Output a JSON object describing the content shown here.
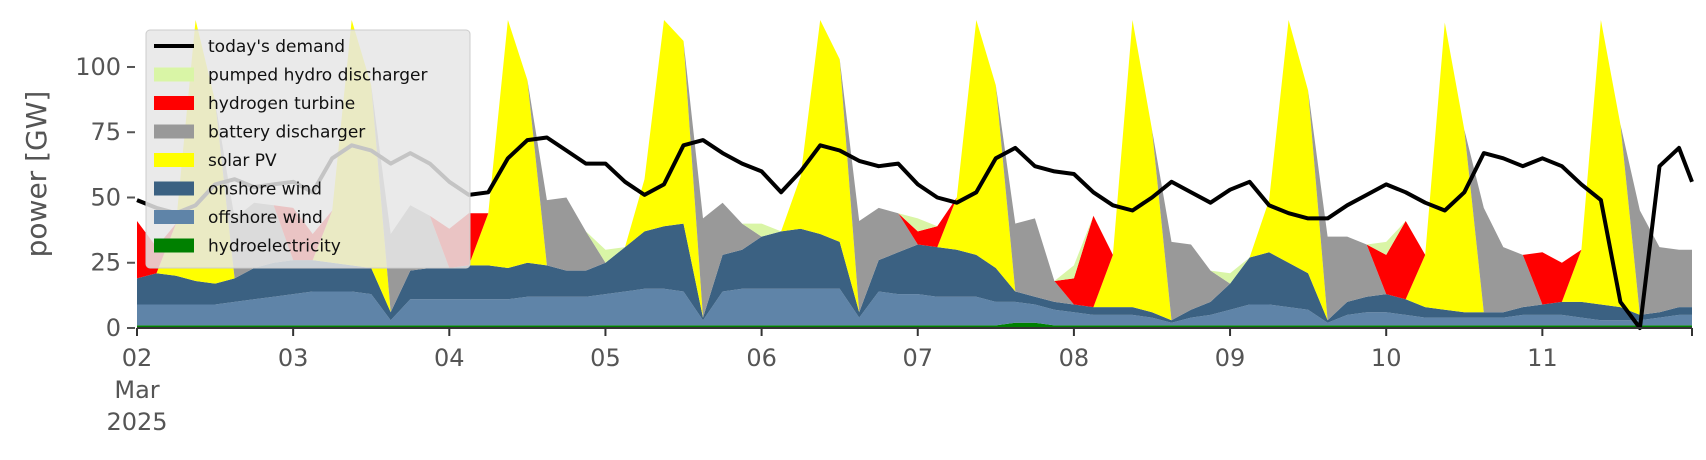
{
  "chart_data": {
    "type": "area",
    "xlabel": "",
    "ylabel": "power [GW]",
    "ylim": [
      0,
      118
    ],
    "xlim": [
      "2025-03-02 00:00",
      "2025-03-11 23:00"
    ],
    "x_ticks": [
      "02",
      "03",
      "04",
      "05",
      "06",
      "07",
      "08",
      "09",
      "10",
      "11"
    ],
    "x_tick_sub": [
      "Mar",
      "2025"
    ],
    "y_ticks": [
      0,
      25,
      50,
      75,
      100
    ],
    "grid": false,
    "legend_position": "top-left",
    "resolution": "3-hourly (times 00,03,...,21)",
    "days": [
      "2025-03-02",
      "2025-03-03",
      "2025-03-04",
      "2025-03-05",
      "2025-03-06",
      "2025-03-07",
      "2025-03-08",
      "2025-03-09",
      "2025-03-10",
      "2025-03-11"
    ],
    "series": [
      {
        "name": "hydroelectricity",
        "color": "#008000",
        "by_day": [
          [
            1,
            1,
            1,
            1,
            1,
            1,
            1,
            1
          ],
          [
            1,
            1,
            1,
            1,
            1,
            1,
            1,
            1
          ],
          [
            1,
            1,
            1,
            1,
            1,
            1,
            1,
            1
          ],
          [
            1,
            1,
            1,
            1,
            1,
            1,
            1,
            1
          ],
          [
            1,
            1,
            1,
            1,
            1,
            1,
            1,
            1
          ],
          [
            1,
            1,
            1,
            1,
            1,
            2,
            2,
            1
          ],
          [
            1,
            1,
            1,
            1,
            1,
            1,
            1,
            1
          ],
          [
            1,
            1,
            1,
            1,
            1,
            1,
            1,
            1
          ],
          [
            1,
            1,
            1,
            1,
            1,
            1,
            1,
            1
          ],
          [
            1,
            1,
            1,
            1,
            1,
            1,
            1,
            1
          ]
        ]
      },
      {
        "name": "offshore wind",
        "color": "#5f84a8",
        "by_day": [
          [
            8,
            8,
            8,
            8,
            8,
            9,
            10,
            11
          ],
          [
            12,
            13,
            13,
            13,
            12,
            2,
            10,
            10
          ],
          [
            10,
            10,
            10,
            10,
            11,
            11,
            11,
            11
          ],
          [
            12,
            13,
            14,
            14,
            13,
            2,
            13,
            14
          ],
          [
            14,
            14,
            14,
            14,
            14,
            3,
            13,
            12
          ],
          [
            12,
            11,
            11,
            11,
            9,
            8,
            7,
            6
          ],
          [
            5,
            4,
            4,
            4,
            3,
            1,
            3,
            4
          ],
          [
            6,
            8,
            8,
            7,
            6,
            1,
            4,
            5
          ],
          [
            5,
            4,
            3,
            3,
            3,
            3,
            3,
            4
          ],
          [
            4,
            4,
            3,
            2,
            2,
            2,
            3,
            4
          ]
        ]
      },
      {
        "name": "onshore wind",
        "color": "#3b6182",
        "by_day": [
          [
            10,
            12,
            11,
            9,
            8,
            9,
            12,
            13
          ],
          [
            13,
            12,
            11,
            10,
            10,
            3,
            11,
            12
          ],
          [
            12,
            13,
            13,
            12,
            13,
            12,
            10,
            10
          ],
          [
            12,
            17,
            22,
            24,
            26,
            1,
            14,
            15
          ],
          [
            20,
            22,
            23,
            21,
            18,
            2,
            12,
            16
          ],
          [
            19,
            19,
            18,
            16,
            13,
            4,
            3,
            3
          ],
          [
            3,
            3,
            3,
            3,
            2,
            1,
            3,
            5
          ],
          [
            10,
            18,
            20,
            17,
            14,
            1,
            5,
            6
          ],
          [
            7,
            6,
            4,
            3,
            2,
            2,
            2,
            3
          ],
          [
            4,
            5,
            6,
            6,
            5,
            2,
            2,
            3
          ]
        ]
      },
      {
        "name": "solar PV",
        "color": "#ffff00",
        "by_day": [
          [
            0,
            0,
            20,
            110,
            70,
            0,
            0,
            0
          ],
          [
            0,
            0,
            20,
            110,
            70,
            0,
            0,
            0
          ],
          [
            0,
            0,
            20,
            110,
            70,
            0,
            0,
            0
          ],
          [
            0,
            0,
            20,
            110,
            70,
            0,
            0,
            0
          ],
          [
            0,
            0,
            20,
            110,
            70,
            0,
            0,
            0
          ],
          [
            0,
            0,
            20,
            110,
            70,
            0,
            0,
            0
          ],
          [
            0,
            0,
            20,
            110,
            70,
            0,
            0,
            0
          ],
          [
            0,
            0,
            20,
            110,
            70,
            0,
            0,
            0
          ],
          [
            0,
            0,
            20,
            110,
            70,
            0,
            0,
            0
          ],
          [
            0,
            0,
            20,
            110,
            70,
            0,
            0,
            0
          ]
        ]
      },
      {
        "name": "battery discharger",
        "color": "#999999",
        "by_day": [
          [
            0,
            0,
            0,
            0,
            0,
            23,
            25,
            22
          ],
          [
            0,
            0,
            0,
            0,
            0,
            30,
            25,
            20
          ],
          [
            0,
            0,
            0,
            0,
            0,
            25,
            28,
            15
          ],
          [
            0,
            0,
            0,
            0,
            0,
            38,
            20,
            10
          ],
          [
            0,
            0,
            0,
            0,
            0,
            35,
            20,
            15
          ],
          [
            0,
            0,
            0,
            0,
            0,
            26,
            30,
            8
          ],
          [
            0,
            0,
            0,
            0,
            0,
            30,
            25,
            12
          ],
          [
            0,
            0,
            0,
            0,
            0,
            32,
            25,
            20
          ],
          [
            0,
            0,
            0,
            0,
            0,
            40,
            25,
            20
          ],
          [
            0,
            0,
            0,
            0,
            0,
            40,
            25,
            22
          ]
        ]
      },
      {
        "name": "hydrogen turbine",
        "color": "#ff0000",
        "by_day": [
          [
            22,
            10,
            0,
            0,
            0,
            0,
            0,
            0
          ],
          [
            20,
            10,
            0,
            0,
            0,
            0,
            0,
            0
          ],
          [
            15,
            20,
            0,
            0,
            0,
            0,
            0,
            0
          ],
          [
            0,
            0,
            0,
            0,
            0,
            0,
            0,
            0
          ],
          [
            0,
            0,
            0,
            0,
            0,
            0,
            0,
            0
          ],
          [
            5,
            8,
            0,
            0,
            0,
            0,
            0,
            0
          ],
          [
            10,
            35,
            0,
            0,
            0,
            0,
            0,
            0
          ],
          [
            0,
            0,
            0,
            0,
            0,
            0,
            0,
            0
          ],
          [
            15,
            30,
            0,
            0,
            0,
            0,
            0,
            0
          ],
          [
            20,
            15,
            0,
            0,
            0,
            0,
            0,
            0
          ]
        ]
      },
      {
        "name": "pumped hydro discharger",
        "color": "#d9f5a6",
        "by_day": [
          [
            0,
            0,
            0,
            0,
            0,
            0,
            0,
            0
          ],
          [
            0,
            0,
            0,
            0,
            0,
            0,
            0,
            0
          ],
          [
            0,
            0,
            0,
            0,
            0,
            0,
            0,
            0
          ],
          [
            5,
            0,
            0,
            0,
            0,
            0,
            0,
            0
          ],
          [
            5,
            0,
            0,
            0,
            0,
            0,
            0,
            0
          ],
          [
            5,
            0,
            0,
            0,
            0,
            0,
            0,
            0
          ],
          [
            5,
            0,
            0,
            0,
            0,
            0,
            0,
            0
          ],
          [
            4,
            0,
            0,
            0,
            0,
            0,
            0,
            0
          ],
          [
            5,
            0,
            0,
            0,
            0,
            0,
            0,
            0
          ],
          [
            0,
            0,
            0,
            0,
            0,
            0,
            0,
            0
          ]
        ]
      }
    ],
    "demand": {
      "name": "today's demand",
      "color": "#000000",
      "by_day": [
        [
          49,
          46,
          44,
          47,
          55,
          57,
          54,
          55
        ],
        [
          56,
          52,
          65,
          70,
          68,
          63,
          67,
          63
        ],
        [
          56,
          51,
          52,
          65,
          72,
          73,
          68,
          63
        ],
        [
          63,
          56,
          51,
          55,
          70,
          72,
          67,
          63
        ],
        [
          60,
          52,
          60,
          70,
          68,
          64,
          62,
          63
        ],
        [
          55,
          50,
          48,
          52,
          65,
          69,
          62,
          60
        ],
        [
          59,
          52,
          47,
          45,
          50,
          56,
          52,
          48
        ],
        [
          53,
          56,
          47,
          44,
          42,
          42,
          47,
          51
        ],
        [
          55,
          52,
          48,
          45,
          52,
          67,
          65,
          62
        ],
        [
          65,
          62,
          55,
          49,
          10,
          0,
          62,
          69
        ]
      ],
      "end_value": 56
    },
    "legend": [
      "today's demand",
      "pumped hydro discharger",
      "hydrogen turbine",
      "battery discharger",
      "solar PV",
      "onshore wind",
      "offshore wind",
      "hydroelectricity"
    ]
  }
}
